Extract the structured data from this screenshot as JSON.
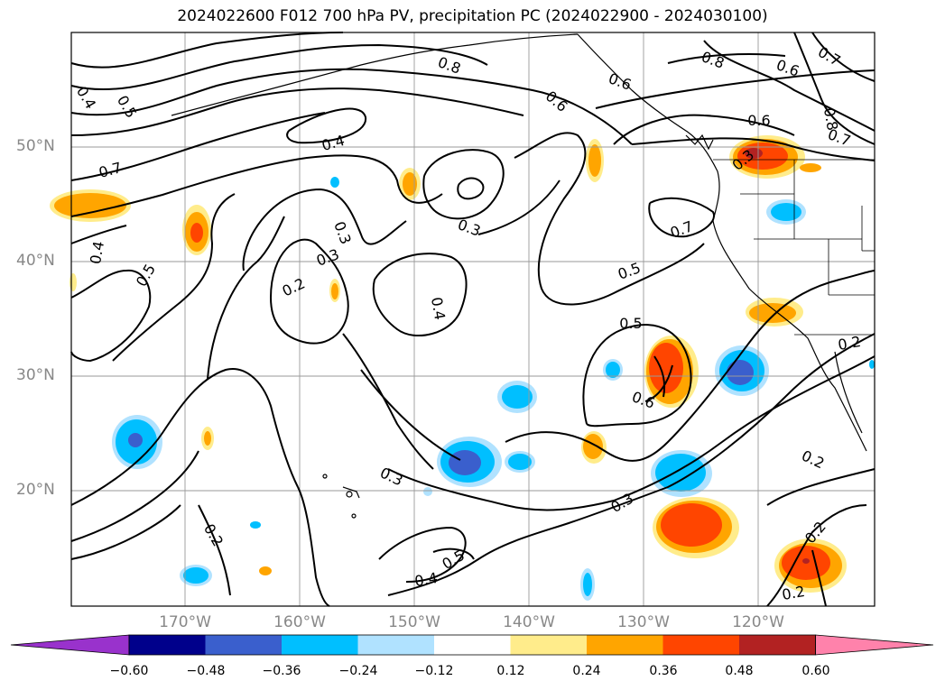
{
  "title": "2024022600 F012 700 hPa PV, precipitation PC (2024022900 - 2024030100)",
  "lat_labels": [
    "50°N",
    "40°N",
    "30°N",
    "20°N"
  ],
  "lon_labels": [
    "170°W",
    "160°W",
    "150°W",
    "140°W",
    "130°W",
    "120°W"
  ],
  "colorbar": {
    "ticks": [
      "−0.60",
      "−0.48",
      "−0.36",
      "−0.24",
      "−0.12",
      "0.12",
      "0.24",
      "0.36",
      "0.48",
      "0.60"
    ],
    "colors": [
      "#9932cc",
      "#00008b",
      "#3a5fcd",
      "#00bfff",
      "#b0e2ff",
      "#ffffff",
      "#ffec8b",
      "#ffa500",
      "#ff4500",
      "#b22222",
      "#ff82ab"
    ]
  },
  "contour_labels": [
    "0.8",
    "0.6",
    "0.4",
    "0.5",
    "0.7",
    "0.3",
    "0.2",
    "0.8",
    "0.6",
    "0.7",
    "0.6",
    "0.8",
    "0.7",
    "0.3",
    "0.3",
    "0.4",
    "0.5",
    "0.4",
    "0.3",
    "0.2",
    "0.4",
    "0.5",
    "0.6",
    "0.3",
    "0.5",
    "0.2",
    "0.2",
    "0.2",
    "0.2",
    "0.3",
    "0.5",
    "0.4",
    "0.6",
    "0.7"
  ]
}
